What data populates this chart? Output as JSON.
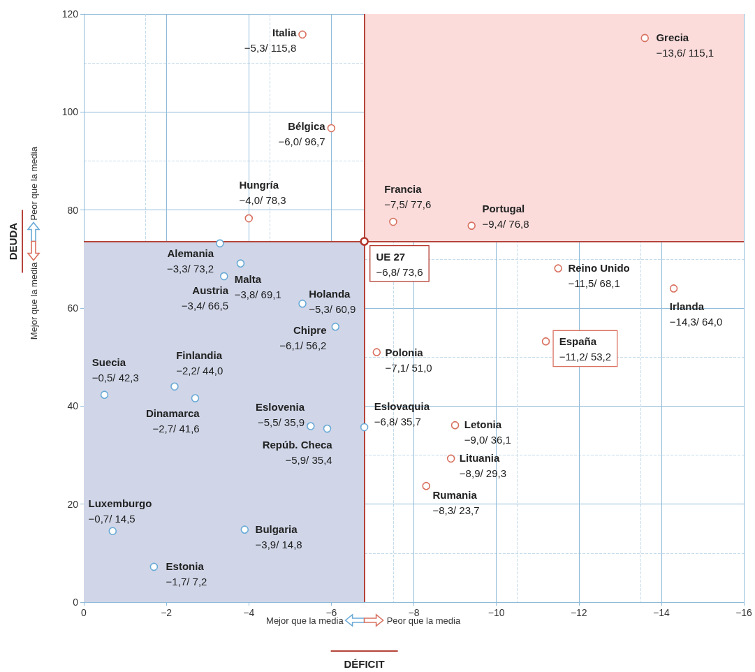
{
  "chart_data": {
    "type": "scatter",
    "xlabel": "DÉFICIT",
    "ylabel": "DEUDA",
    "annotations": [
      "Mejor que la media",
      "Peor que la media",
      "Mejor que la media",
      "Peor que la media"
    ],
    "xlim": [
      0,
      -16
    ],
    "xticks": [
      0,
      {
        "value": -2,
        "label": "−2"
      },
      {
        "value": -4,
        "label": "−4"
      },
      {
        "value": -6,
        "label": "−6"
      },
      {
        "value": -8,
        "label": "−8"
      },
      {
        "value": -10,
        "label": "−10"
      },
      {
        "value": -12,
        "label": "−12"
      },
      {
        "value": -14,
        "label": "−14"
      },
      {
        "value": -16,
        "label": "−16"
      }
    ],
    "ylim": [
      0,
      120
    ],
    "yticks": [
      0,
      20,
      40,
      60,
      80,
      100,
      120
    ],
    "grid": true,
    "legend": false,
    "marker": "circle",
    "ref_lines": [
      {
        "axis": "x",
        "value": -6.8,
        "color": "#b5443a"
      },
      {
        "axis": "y",
        "value": 73.6,
        "color": "#b5443a"
      }
    ],
    "bands": [
      {
        "axis": "x",
        "from": -6.8,
        "to": -16,
        "color": "#fbdcdb"
      },
      {
        "axis": "x",
        "from": 0,
        "to": -6.8,
        "color": "#d0d6e8"
      }
    ],
    "series": [
      {
        "name": "Italia",
        "color": "#d9705f",
        "x": [
          -5.3
        ],
        "values": [
          115.8
        ],
        "value_labels": [
          "−5,3/ 115,8"
        ]
      },
      {
        "name": "Grecia",
        "color": "#d9705f",
        "x": [
          -13.6
        ],
        "values": [
          115.1
        ],
        "value_labels": [
          "−13,6/ 115,1"
        ]
      },
      {
        "name": "Bélgica",
        "color": "#d9705f",
        "x": [
          -6.0
        ],
        "values": [
          96.7
        ],
        "value_labels": [
          "−6,0/ 96,7"
        ]
      },
      {
        "name": "Hungría",
        "color": "#d9705f",
        "x": [
          -4.0
        ],
        "values": [
          78.3
        ],
        "value_labels": [
          "−4,0/ 78,3"
        ]
      },
      {
        "name": "Francia",
        "color": "#d9705f",
        "x": [
          -7.5
        ],
        "values": [
          77.6
        ],
        "value_labels": [
          "−7,5/ 77,6"
        ]
      },
      {
        "name": "Portugal",
        "color": "#d9705f",
        "x": [
          -9.4
        ],
        "values": [
          76.8
        ],
        "value_labels": [
          "−9,4/ 76,8"
        ]
      },
      {
        "name": "Alemania",
        "color": "#6aaad6",
        "x": [
          -3.3
        ],
        "values": [
          73.2
        ],
        "value_labels": [
          "−3,3/ 73,2"
        ]
      },
      {
        "name": "Malta",
        "color": "#6aaad6",
        "x": [
          -3.8
        ],
        "values": [
          69.1
        ],
        "value_labels": [
          "−3,8/ 69,1"
        ]
      },
      {
        "name": "Holanda",
        "color": "#6aaad6",
        "x": [
          -5.3
        ],
        "values": [
          60.9
        ],
        "value_labels": [
          "−5,3/ 60,9"
        ]
      },
      {
        "name": "UE 27",
        "color": "#b3362c",
        "x": [
          -6.8
        ],
        "values": [
          73.6
        ],
        "value_labels": [
          "−6,8/ 73,6"
        ]
      },
      {
        "name": "Reino Unido",
        "color": "#d9705f",
        "x": [
          -11.5
        ],
        "values": [
          68.1
        ],
        "value_labels": [
          "−11,5/ 68,1"
        ]
      },
      {
        "name": "Irlanda",
        "color": "#d9705f",
        "x": [
          -14.3
        ],
        "values": [
          64.0
        ],
        "value_labels": [
          "−14,3/ 64,0"
        ]
      },
      {
        "name": "Austria",
        "color": "#6aaad6",
        "x": [
          -3.4
        ],
        "values": [
          66.5
        ],
        "value_labels": [
          "−3,4/ 66,5"
        ]
      },
      {
        "name": "Chipre",
        "color": "#6aaad6",
        "x": [
          -6.1
        ],
        "values": [
          56.2
        ],
        "value_labels": [
          "−6,1/ 56,2"
        ]
      },
      {
        "name": "España",
        "color": "#d9705f",
        "x": [
          -11.2
        ],
        "values": [
          53.2
        ],
        "value_labels": [
          "−11,2/ 53,2"
        ]
      },
      {
        "name": "Polonia",
        "color": "#d9705f",
        "x": [
          -7.1
        ],
        "values": [
          51.0
        ],
        "value_labels": [
          "−7,1/ 51,0"
        ]
      },
      {
        "name": "Suecia",
        "color": "#6aaad6",
        "x": [
          -0.5
        ],
        "values": [
          42.3
        ],
        "value_labels": [
          "−0,5/ 42,3"
        ]
      },
      {
        "name": "Finlandia",
        "color": "#6aaad6",
        "x": [
          -2.2
        ],
        "values": [
          44.0
        ],
        "value_labels": [
          "−2,2/ 44,0"
        ]
      },
      {
        "name": "Dinamarca",
        "color": "#6aaad6",
        "x": [
          -2.7
        ],
        "values": [
          41.6
        ],
        "value_labels": [
          "−2,7/ 41,6"
        ]
      },
      {
        "name": "Eslovaquia",
        "color": "#6aaad6",
        "x": [
          -6.8
        ],
        "values": [
          35.7
        ],
        "value_labels": [
          "−6,8/ 35,7"
        ]
      },
      {
        "name": "Eslovenia",
        "color": "#6aaad6",
        "x": [
          -5.5
        ],
        "values": [
          35.9
        ],
        "value_labels": [
          "−5,5/ 35,9"
        ]
      },
      {
        "name": "Repúb. Checa",
        "color": "#6aaad6",
        "x": [
          -5.9
        ],
        "values": [
          35.4
        ],
        "value_labels": [
          "−5,9/ 35,4"
        ]
      },
      {
        "name": "Letonia",
        "color": "#d9705f",
        "x": [
          -9.0
        ],
        "values": [
          36.1
        ],
        "value_labels": [
          "−9,0/ 36,1"
        ]
      },
      {
        "name": "Lituania",
        "color": "#d9705f",
        "x": [
          -8.9
        ],
        "values": [
          29.3
        ],
        "value_labels": [
          "−8,9/ 29,3"
        ]
      },
      {
        "name": "Rumania",
        "color": "#d9705f",
        "x": [
          -8.3
        ],
        "values": [
          23.7
        ],
        "value_labels": [
          "−8,3/ 23,7"
        ]
      },
      {
        "name": "Luxemburgo",
        "color": "#6aaad6",
        "x": [
          -0.7
        ],
        "values": [
          14.5
        ],
        "value_labels": [
          "−0,7/ 14,5"
        ]
      },
      {
        "name": "Bulgaria",
        "color": "#6aaad6",
        "x": [
          -3.9
        ],
        "values": [
          14.8
        ],
        "value_labels": [
          "−3,9/ 14,8"
        ]
      },
      {
        "name": "Estonia",
        "color": "#6aaad6",
        "x": [
          -1.7
        ],
        "values": [
          7.2
        ],
        "value_labels": [
          "−1,7/ 7,2"
        ]
      }
    ]
  }
}
